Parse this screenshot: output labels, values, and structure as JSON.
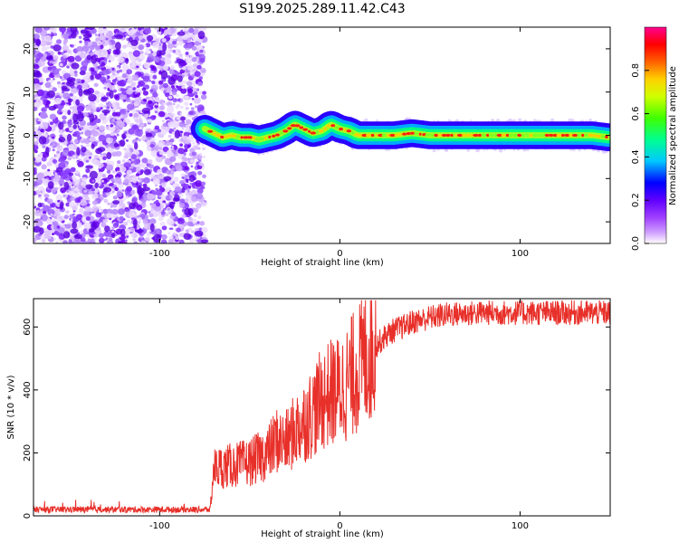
{
  "title": "S199.2025.289.11.42.C43",
  "chart_data": [
    {
      "type": "heatmap",
      "name": "spectrogram",
      "xlabel": "Height of straight line (km)",
      "ylabel": "Frequency (Hz)",
      "xlim": [
        -170,
        150
      ],
      "ylim": [
        -25,
        25
      ],
      "xticks": [
        -100,
        0,
        100
      ],
      "xtick_labels": [
        "-100",
        "0",
        "100"
      ],
      "yticks": [
        -20,
        -10,
        0,
        10,
        20
      ],
      "ytick_labels": [
        "-20",
        "-10",
        "0",
        "10",
        "20"
      ],
      "noise_region_x": [
        -170,
        -75
      ],
      "signal_start_x": -75,
      "signal_center_freq": [
        [
          -75,
          1.5
        ],
        [
          -70,
          0.5
        ],
        [
          -65,
          -0.5
        ],
        [
          -60,
          0.0
        ],
        [
          -55,
          -0.5
        ],
        [
          -50,
          -0.5
        ],
        [
          -45,
          -1.0
        ],
        [
          -40,
          -0.5
        ],
        [
          -35,
          0.0
        ],
        [
          -30,
          1.0
        ],
        [
          -25,
          2.5
        ],
        [
          -20,
          1.5
        ],
        [
          -15,
          0.5
        ],
        [
          -10,
          1.0
        ],
        [
          -5,
          2.5
        ],
        [
          0,
          1.5
        ],
        [
          5,
          1.0
        ],
        [
          10,
          0.0
        ],
        [
          20,
          0.0
        ],
        [
          30,
          0.0
        ],
        [
          40,
          0.5
        ],
        [
          50,
          0.0
        ],
        [
          60,
          0.0
        ],
        [
          70,
          0.0
        ],
        [
          80,
          0.0
        ],
        [
          100,
          0.0
        ],
        [
          120,
          0.0
        ],
        [
          140,
          0.0
        ],
        [
          150,
          -0.5
        ]
      ]
    },
    {
      "type": "line",
      "name": "snr",
      "xlabel": "Height of straight line (km)",
      "ylabel": "SNR (10 * v/v)",
      "xlim": [
        -170,
        150
      ],
      "ylim": [
        0,
        690
      ],
      "xticks": [
        -100,
        0,
        100
      ],
      "xtick_labels": [
        "-100",
        "0",
        "100"
      ],
      "yticks": [
        0,
        200,
        400,
        600
      ],
      "ytick_labels": [
        "0",
        "200",
        "400",
        "600"
      ],
      "color": "#e8302a",
      "envelope": [
        [
          -170,
          20
        ],
        [
          -72,
          20
        ],
        [
          -70,
          150
        ],
        [
          -60,
          160
        ],
        [
          -50,
          170
        ],
        [
          -40,
          200
        ],
        [
          -35,
          240
        ],
        [
          -30,
          230
        ],
        [
          -25,
          270
        ],
        [
          -20,
          300
        ],
        [
          -15,
          330
        ],
        [
          -10,
          370
        ],
        [
          -5,
          390
        ],
        [
          0,
          400
        ],
        [
          5,
          430
        ],
        [
          10,
          470
        ],
        [
          15,
          510
        ],
        [
          20,
          540
        ],
        [
          25,
          570
        ],
        [
          30,
          590
        ],
        [
          35,
          600
        ],
        [
          40,
          615
        ],
        [
          50,
          630
        ],
        [
          60,
          640
        ],
        [
          80,
          645
        ],
        [
          100,
          645
        ],
        [
          150,
          645
        ]
      ]
    }
  ],
  "colorbar": {
    "label": "Normalized spectral amplitude",
    "ticks": [
      0.0,
      0.2,
      0.4,
      0.6,
      0.8
    ],
    "tick_labels": [
      "0.0",
      "0.2",
      "0.4",
      "0.6",
      "0.8"
    ],
    "range": [
      0,
      1
    ],
    "colors": [
      "#ffffff",
      "#c080ff",
      "#8000ff",
      "#0000ff",
      "#00c0ff",
      "#00ff80",
      "#80ff00",
      "#ffff00",
      "#ff8000",
      "#ff0000",
      "#ff0080"
    ]
  }
}
